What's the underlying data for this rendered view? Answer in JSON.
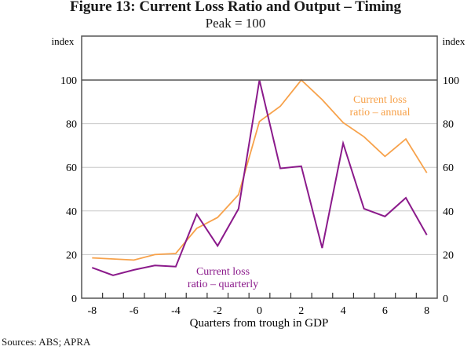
{
  "chart_data": {
    "type": "line",
    "title": "Figure 13: Current Loss Ratio and Output – Timing",
    "subtitle": "Peak = 100",
    "xlabel": "Quarters from trough in GDP",
    "ylabel_left": "index",
    "ylabel_right": "index",
    "ylim": [
      0,
      100
    ],
    "yticks": [
      0,
      20,
      40,
      60,
      80,
      100
    ],
    "xlim": [
      -8,
      8
    ],
    "xticks": [
      -8,
      -6,
      -4,
      -2,
      0,
      2,
      4,
      6,
      8
    ],
    "x": [
      -8,
      -7,
      -6,
      -5,
      -4,
      -3,
      -2,
      -1,
      0,
      1,
      2,
      3,
      4,
      5,
      6,
      7,
      8
    ],
    "grid": true,
    "series": [
      {
        "name": "Current loss ratio – annual",
        "label_lines": [
          "Current loss",
          "ratio – annual"
        ],
        "color": "#F7A24B",
        "values": [
          18.5,
          18,
          17.5,
          20,
          20.5,
          32,
          37,
          47.5,
          81,
          88,
          100,
          91,
          80.5,
          74,
          65,
          73,
          57.5
        ]
      },
      {
        "name": "Current loss ratio – quarterly",
        "label_lines": [
          "Current loss",
          "ratio – quarterly"
        ],
        "color": "#8B1A8B",
        "values": [
          14,
          10.5,
          13,
          15,
          14.5,
          38.5,
          24,
          41,
          100,
          59.5,
          60.5,
          23,
          71,
          41,
          37.5,
          46,
          29
        ]
      }
    ]
  },
  "sources": "Sources:    ABS; APRA"
}
